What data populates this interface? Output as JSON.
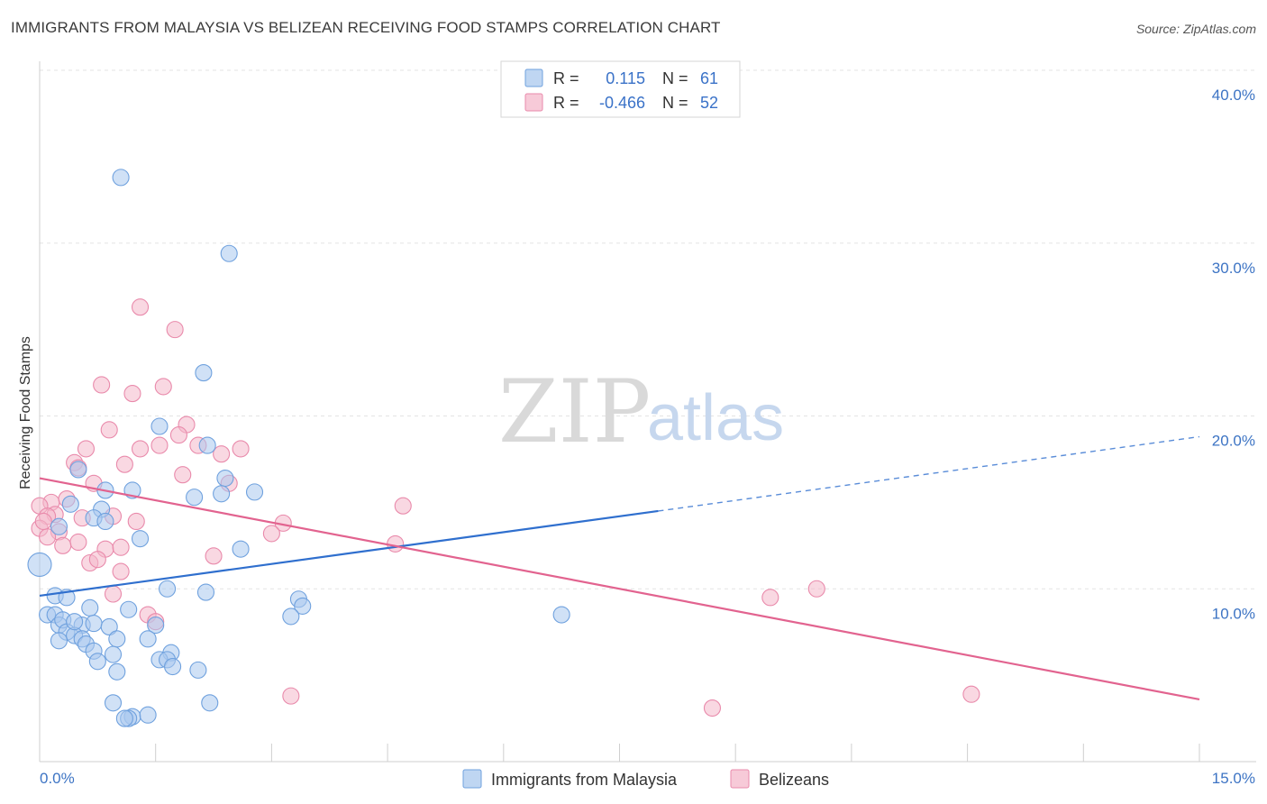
{
  "header": {
    "title": "IMMIGRANTS FROM MALAYSIA VS BELIZEAN RECEIVING FOOD STAMPS CORRELATION CHART",
    "source": "Source: ZipAtlas.com"
  },
  "watermark": {
    "zip": "ZIP",
    "atlas": "atlas"
  },
  "legend_top": {
    "rows": [
      {
        "r_label": "R =",
        "r_value": "0.115",
        "n_label": "N =",
        "n_value": "61",
        "color": "#a9c8ee"
      },
      {
        "r_label": "R =",
        "r_value": "-0.466",
        "n_label": "N =",
        "n_value": "52",
        "color": "#f4b8cb"
      }
    ]
  },
  "legend_bottom": {
    "items": [
      {
        "label": "Immigrants from Malaysia",
        "color": "#a9c8ee"
      },
      {
        "label": "Belizeans",
        "color": "#f4b8cb"
      }
    ]
  },
  "colors": {
    "blue_fill": "#a9c8ee",
    "blue_stroke": "#6fa1de",
    "blue_line": "#2f6fce",
    "pink_fill": "#f4b8cb",
    "pink_stroke": "#e98aab",
    "pink_line": "#e2638f",
    "grid": "#e3e3e3",
    "tick_text": "#3d74c4"
  },
  "chart_data": {
    "type": "scatter",
    "title": "IMMIGRANTS FROM MALAYSIA VS BELIZEAN RECEIVING FOOD STAMPS CORRELATION CHART",
    "xlabel": "",
    "ylabel": "Receiving Food Stamps",
    "xlim": [
      0,
      15
    ],
    "ylim": [
      0,
      40
    ],
    "x_tick_labels": [
      "0.0%",
      "15.0%"
    ],
    "y_tick_labels": [
      "10.0%",
      "20.0%",
      "30.0%",
      "40.0%"
    ],
    "y_ticks": [
      10,
      20,
      30,
      40
    ],
    "grid": true,
    "legend_position": "top-center",
    "series": [
      {
        "name": "Immigrants from Malaysia",
        "stats": {
          "R": 0.115,
          "N": 61
        },
        "trend": {
          "x0": 0,
          "y0": 9.6,
          "x1": 8.0,
          "y1": 14.5,
          "dashed_to_x": 15,
          "dashed_to_y": 18.8
        },
        "points": [
          [
            1.05,
            33.8
          ],
          [
            2.45,
            29.4
          ],
          [
            2.12,
            22.5
          ],
          [
            1.55,
            19.4
          ],
          [
            2.17,
            18.3
          ],
          [
            0.5,
            16.9
          ],
          [
            2.4,
            16.4
          ],
          [
            1.2,
            15.7
          ],
          [
            0.85,
            15.7
          ],
          [
            2.78,
            15.6
          ],
          [
            2.0,
            15.3
          ],
          [
            2.35,
            15.5
          ],
          [
            0.4,
            14.9
          ],
          [
            0.8,
            14.6
          ],
          [
            0.25,
            13.6
          ],
          [
            0.7,
            14.1
          ],
          [
            0.85,
            13.9
          ],
          [
            1.3,
            12.9
          ],
          [
            2.6,
            12.3
          ],
          [
            0.0,
            11.4
          ],
          [
            0.2,
            9.6
          ],
          [
            0.35,
            9.5
          ],
          [
            1.65,
            10.0
          ],
          [
            2.15,
            9.8
          ],
          [
            3.35,
            9.4
          ],
          [
            3.4,
            9.0
          ],
          [
            0.1,
            8.5
          ],
          [
            0.2,
            8.5
          ],
          [
            0.65,
            8.9
          ],
          [
            1.15,
            8.8
          ],
          [
            3.25,
            8.4
          ],
          [
            6.75,
            8.5
          ],
          [
            0.25,
            7.9
          ],
          [
            0.3,
            8.2
          ],
          [
            0.55,
            7.9
          ],
          [
            0.7,
            8.0
          ],
          [
            0.9,
            7.8
          ],
          [
            1.5,
            7.9
          ],
          [
            0.35,
            7.5
          ],
          [
            0.25,
            7.0
          ],
          [
            0.45,
            7.3
          ],
          [
            0.55,
            7.1
          ],
          [
            0.6,
            6.8
          ],
          [
            1.0,
            7.1
          ],
          [
            1.4,
            7.1
          ],
          [
            0.95,
            6.2
          ],
          [
            0.7,
            6.4
          ],
          [
            1.7,
            6.3
          ],
          [
            0.75,
            5.8
          ],
          [
            1.55,
            5.9
          ],
          [
            1.65,
            5.9
          ],
          [
            1.72,
            5.5
          ],
          [
            2.05,
            5.3
          ],
          [
            1.0,
            5.2
          ],
          [
            0.95,
            3.4
          ],
          [
            2.2,
            3.4
          ],
          [
            1.2,
            2.6
          ],
          [
            1.15,
            2.5
          ],
          [
            1.4,
            2.7
          ],
          [
            1.1,
            2.5
          ],
          [
            0.45,
            8.1
          ]
        ]
      },
      {
        "name": "Belizeans",
        "stats": {
          "R": -0.466,
          "N": 52
        },
        "trend": {
          "x0": 0,
          "y0": 16.4,
          "x1": 15,
          "y1": 3.6
        },
        "points": [
          [
            1.3,
            26.3
          ],
          [
            1.75,
            25.0
          ],
          [
            0.8,
            21.8
          ],
          [
            1.2,
            21.3
          ],
          [
            1.6,
            21.7
          ],
          [
            0.9,
            19.2
          ],
          [
            1.9,
            19.5
          ],
          [
            1.8,
            18.9
          ],
          [
            0.6,
            18.1
          ],
          [
            1.3,
            18.1
          ],
          [
            1.55,
            18.3
          ],
          [
            2.05,
            18.3
          ],
          [
            2.6,
            18.1
          ],
          [
            2.35,
            17.8
          ],
          [
            0.45,
            17.3
          ],
          [
            0.5,
            17.0
          ],
          [
            1.1,
            17.2
          ],
          [
            1.85,
            16.6
          ],
          [
            0.7,
            16.1
          ],
          [
            2.45,
            16.1
          ],
          [
            0.15,
            15.0
          ],
          [
            0.35,
            15.2
          ],
          [
            0.0,
            14.8
          ],
          [
            0.2,
            14.3
          ],
          [
            0.55,
            14.1
          ],
          [
            0.95,
            14.2
          ],
          [
            0.1,
            14.2
          ],
          [
            1.25,
            13.9
          ],
          [
            3.15,
            13.8
          ],
          [
            0.0,
            13.5
          ],
          [
            0.25,
            13.3
          ],
          [
            0.1,
            13.0
          ],
          [
            3.0,
            13.2
          ],
          [
            0.5,
            12.7
          ],
          [
            0.3,
            12.5
          ],
          [
            0.85,
            12.3
          ],
          [
            1.05,
            12.4
          ],
          [
            4.7,
            14.8
          ],
          [
            4.6,
            12.6
          ],
          [
            2.25,
            11.9
          ],
          [
            0.65,
            11.5
          ],
          [
            0.75,
            11.7
          ],
          [
            1.05,
            11.0
          ],
          [
            0.95,
            9.7
          ],
          [
            1.4,
            8.5
          ],
          [
            1.5,
            8.1
          ],
          [
            9.45,
            9.5
          ],
          [
            10.05,
            10.0
          ],
          [
            3.25,
            3.8
          ],
          [
            8.7,
            3.1
          ],
          [
            12.05,
            3.9
          ],
          [
            0.05,
            13.9
          ]
        ]
      }
    ]
  }
}
